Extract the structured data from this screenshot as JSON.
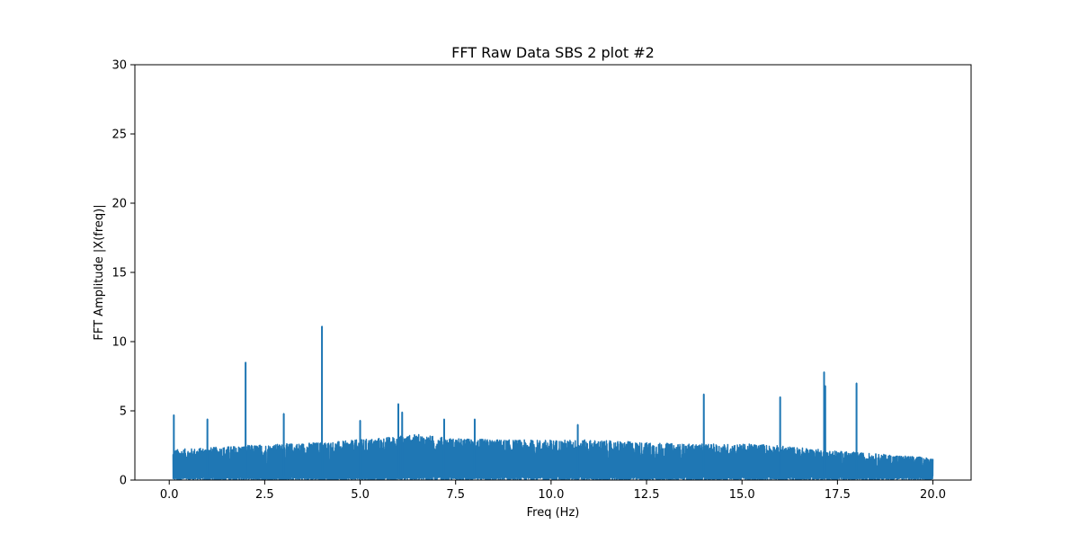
{
  "chart_data": {
    "type": "line",
    "title": "FFT Raw Data SBS 2 plot #2",
    "xlabel": "Freq (Hz)",
    "ylabel": "FFT Amplitude |X(freq)|",
    "xlim": [
      -0.9,
      21.0
    ],
    "ylim": [
      0,
      30
    ],
    "x_ticks": [
      0.0,
      2.5,
      5.0,
      7.5,
      10.0,
      12.5,
      15.0,
      17.5,
      20.0
    ],
    "x_tick_labels": [
      "0.0",
      "2.5",
      "5.0",
      "7.5",
      "10.0",
      "12.5",
      "15.0",
      "17.5",
      "20.0"
    ],
    "y_ticks": [
      0,
      5,
      10,
      15,
      20,
      25,
      30
    ],
    "y_tick_labels": [
      "0",
      "5",
      "10",
      "15",
      "20",
      "25",
      "30"
    ],
    "grid": false,
    "series": [
      {
        "color": "#1f77b4",
        "x_range": [
          0.1,
          20.0
        ],
        "noise_envelope": [
          {
            "x": 0.1,
            "y": 2.2
          },
          {
            "x": 2.0,
            "y": 2.5
          },
          {
            "x": 4.5,
            "y": 2.8
          },
          {
            "x": 6.5,
            "y": 3.3
          },
          {
            "x": 7.5,
            "y": 3.0
          },
          {
            "x": 9.0,
            "y": 2.9
          },
          {
            "x": 11.0,
            "y": 2.9
          },
          {
            "x": 13.5,
            "y": 2.6
          },
          {
            "x": 15.5,
            "y": 2.6
          },
          {
            "x": 17.5,
            "y": 2.1
          },
          {
            "x": 20.0,
            "y": 1.6
          }
        ],
        "peaks": [
          {
            "x": 0.12,
            "y": 4.7
          },
          {
            "x": 1.0,
            "y": 4.4
          },
          {
            "x": 2.0,
            "y": 8.5
          },
          {
            "x": 3.0,
            "y": 4.8
          },
          {
            "x": 4.0,
            "y": 11.1
          },
          {
            "x": 5.0,
            "y": 4.3
          },
          {
            "x": 6.0,
            "y": 5.5
          },
          {
            "x": 6.1,
            "y": 4.9
          },
          {
            "x": 7.2,
            "y": 4.4
          },
          {
            "x": 8.0,
            "y": 4.4
          },
          {
            "x": 10.7,
            "y": 4.0
          },
          {
            "x": 14.0,
            "y": 6.2
          },
          {
            "x": 16.0,
            "y": 6.0
          },
          {
            "x": 17.15,
            "y": 7.8
          },
          {
            "x": 17.18,
            "y": 6.8
          },
          {
            "x": 18.0,
            "y": 7.0
          }
        ]
      }
    ]
  }
}
